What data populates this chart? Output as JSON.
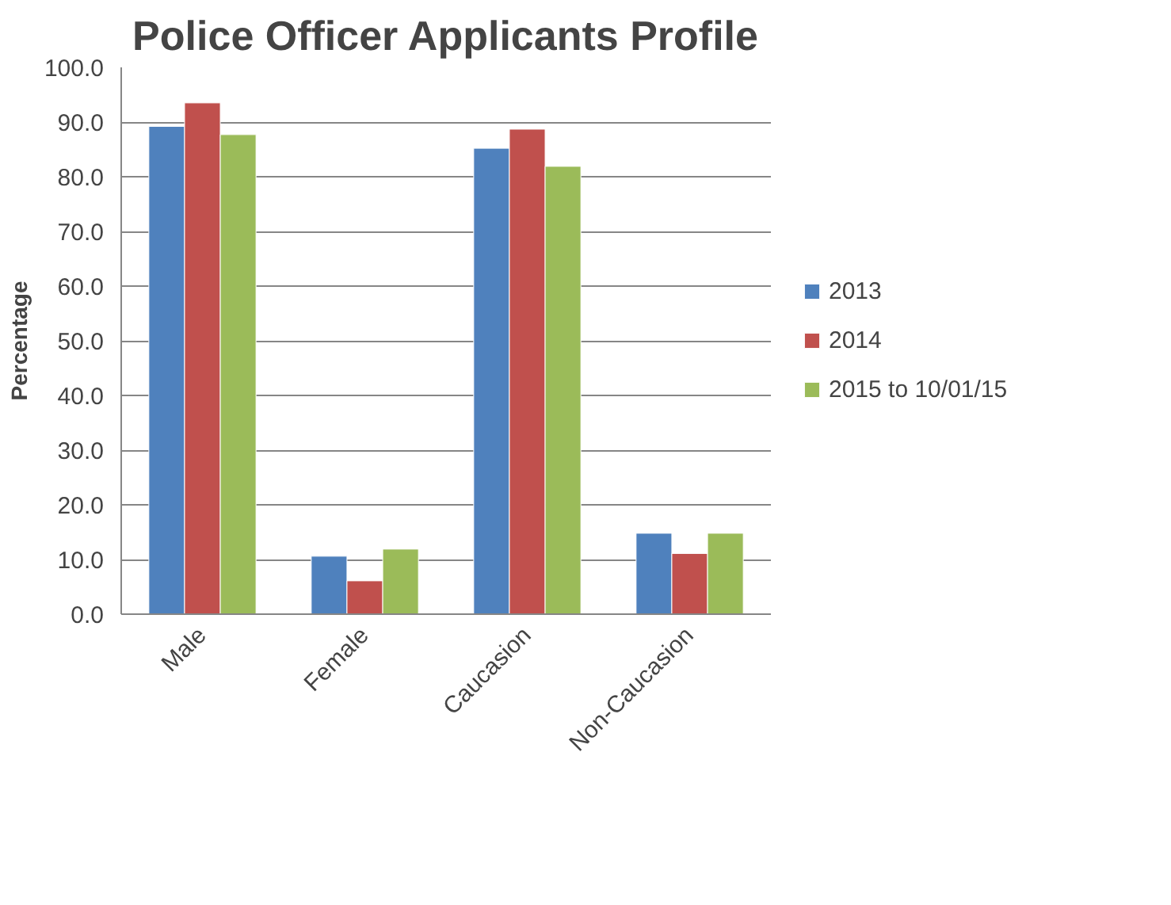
{
  "chart_data": {
    "type": "bar",
    "title": "Police Officer Applicants Profile",
    "ylabel": "Percentage",
    "categories": [
      "Male",
      "Female",
      "Caucasion",
      "Non-Caucasion"
    ],
    "series": [
      {
        "name": "2013",
        "color": "#4f81bd",
        "values": [
          89.2,
          10.6,
          85.2,
          14.8
        ]
      },
      {
        "name": "2014",
        "color": "#c0504d",
        "values": [
          93.5,
          6.1,
          88.7,
          11.1
        ]
      },
      {
        "name": "2015 to 10/01/15",
        "color": "#9bbb59",
        "values": [
          87.7,
          11.9,
          81.9,
          14.8
        ]
      }
    ],
    "ylim": [
      0,
      100
    ],
    "yticks": [
      {
        "value": 0,
        "label": "0.0"
      },
      {
        "value": 10,
        "label": "10.0"
      },
      {
        "value": 20,
        "label": "20.0"
      },
      {
        "value": 30,
        "label": "30.0"
      },
      {
        "value": 40,
        "label": "40.0"
      },
      {
        "value": 50,
        "label": "50.0"
      },
      {
        "value": 60,
        "label": "60.0"
      },
      {
        "value": 70,
        "label": "70.0"
      },
      {
        "value": 80,
        "label": "80.0"
      },
      {
        "value": 90,
        "label": "90.0"
      },
      {
        "value": 100,
        "label": "100.0"
      }
    ],
    "grid": "y",
    "legend": "right"
  }
}
